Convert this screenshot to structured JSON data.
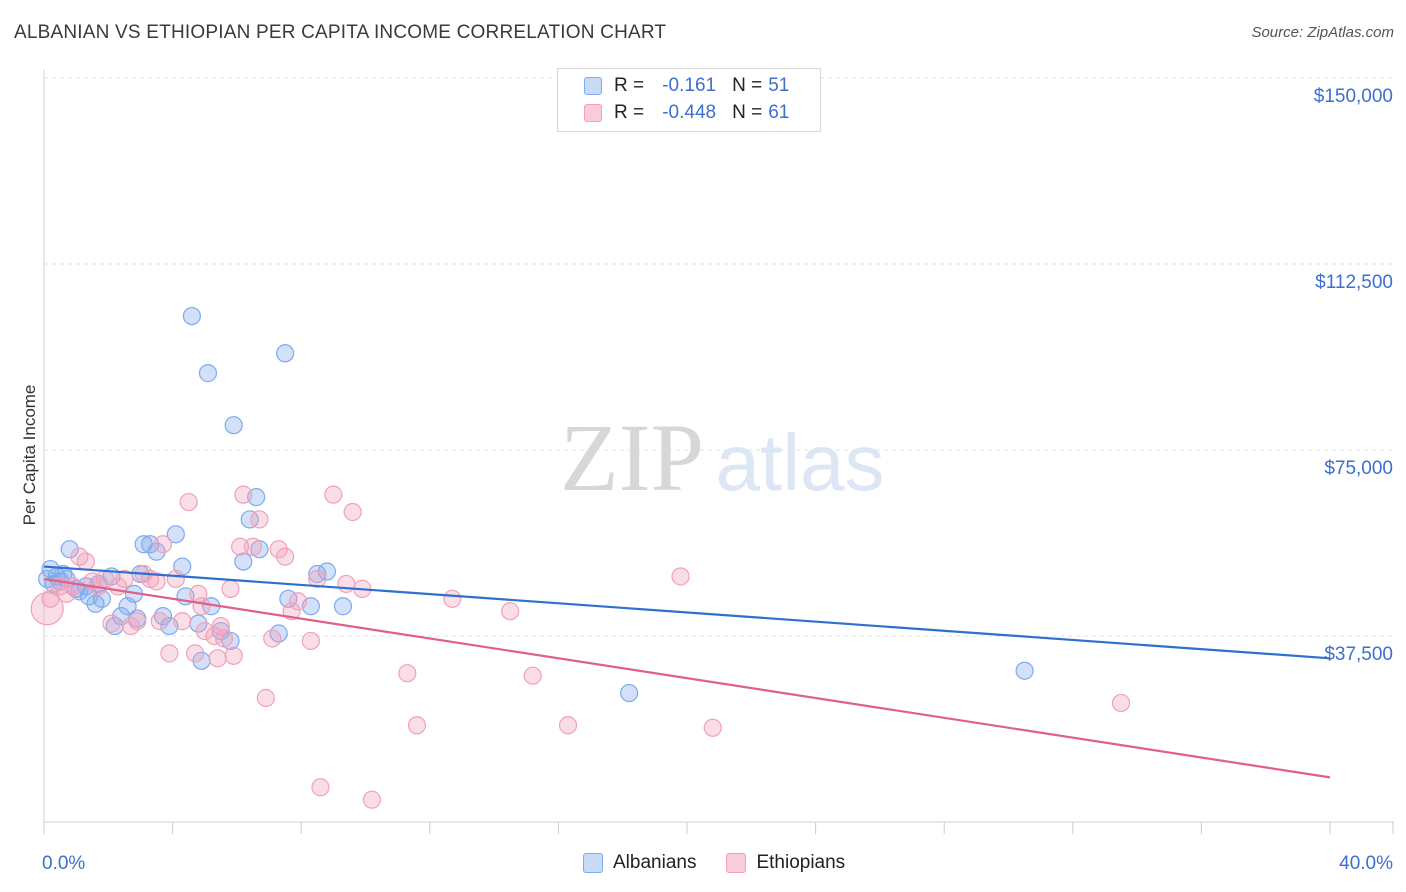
{
  "chart_data": {
    "type": "scatter",
    "title": "ALBANIAN VS ETHIOPIAN PER CAPITA INCOME CORRELATION CHART",
    "source": "Source: ZipAtlas.com",
    "xlabel": "",
    "ylabel": "Per Capita Income",
    "xlim": [
      0,
      40
    ],
    "ylim": [
      0,
      155000
    ],
    "x_tick_labels": [
      "0.0%",
      "40.0%"
    ],
    "y_ticks": [
      {
        "value": 37500,
        "label": "$37,500"
      },
      {
        "value": 75000,
        "label": "$75,000"
      },
      {
        "value": 112500,
        "label": "$112,500"
      },
      {
        "value": 150000,
        "label": "$150,000"
      }
    ],
    "watermark": "ZIPatlas",
    "series": [
      {
        "name": "Albanians",
        "color": "#7eaaee",
        "line_color": "#2f6fd0",
        "R": "-0.161",
        "N": "51",
        "trend": {
          "x0": 0,
          "y0": 51500,
          "x1": 40,
          "y1": 33000
        },
        "points": [
          [
            0.2,
            51000
          ],
          [
            0.3,
            48000
          ],
          [
            0.4,
            49500
          ],
          [
            0.5,
            48500
          ],
          [
            0.6,
            50000
          ],
          [
            0.7,
            49000
          ],
          [
            0.8,
            55000
          ],
          [
            1.0,
            47000
          ],
          [
            1.1,
            46500
          ],
          [
            1.3,
            47500
          ],
          [
            1.4,
            45500
          ],
          [
            1.6,
            44000
          ],
          [
            1.7,
            48000
          ],
          [
            1.8,
            45000
          ],
          [
            2.1,
            49500
          ],
          [
            2.2,
            39500
          ],
          [
            2.4,
            41500
          ],
          [
            2.6,
            43500
          ],
          [
            2.8,
            46000
          ],
          [
            2.9,
            41000
          ],
          [
            3.0,
            50000
          ],
          [
            3.1,
            56000
          ],
          [
            3.3,
            56000
          ],
          [
            3.5,
            54500
          ],
          [
            3.7,
            41500
          ],
          [
            3.9,
            39500
          ],
          [
            4.1,
            58000
          ],
          [
            4.3,
            51500
          ],
          [
            4.4,
            45500
          ],
          [
            4.6,
            102000
          ],
          [
            4.8,
            40000
          ],
          [
            4.9,
            32500
          ],
          [
            5.1,
            90500
          ],
          [
            5.2,
            43500
          ],
          [
            5.5,
            38500
          ],
          [
            5.8,
            36500
          ],
          [
            5.9,
            80000
          ],
          [
            6.2,
            52500
          ],
          [
            6.4,
            61000
          ],
          [
            6.6,
            65500
          ],
          [
            6.7,
            55000
          ],
          [
            7.3,
            38000
          ],
          [
            7.5,
            94500
          ],
          [
            7.6,
            45000
          ],
          [
            8.3,
            43500
          ],
          [
            8.5,
            50000
          ],
          [
            8.8,
            50500
          ],
          [
            9.3,
            43500
          ],
          [
            18.2,
            26000
          ],
          [
            30.5,
            30500
          ],
          [
            0.1,
            49000
          ]
        ]
      },
      {
        "name": "Ethiopians",
        "color": "#f2a0ba",
        "line_color": "#e0608a",
        "R": "-0.448",
        "N": "61",
        "trend": {
          "x0": 0,
          "y0": 49000,
          "x1": 40,
          "y1": 9000
        },
        "points": [
          [
            0.1,
            43000
          ],
          [
            0.2,
            45000
          ],
          [
            0.5,
            47500
          ],
          [
            0.7,
            46000
          ],
          [
            0.9,
            47500
          ],
          [
            1.1,
            53500
          ],
          [
            1.3,
            52500
          ],
          [
            1.5,
            48500
          ],
          [
            1.7,
            47500
          ],
          [
            1.9,
            49000
          ],
          [
            2.1,
            40000
          ],
          [
            2.3,
            47500
          ],
          [
            2.5,
            49000
          ],
          [
            2.7,
            39500
          ],
          [
            2.9,
            40500
          ],
          [
            3.1,
            50000
          ],
          [
            3.3,
            49000
          ],
          [
            3.5,
            48500
          ],
          [
            3.6,
            40500
          ],
          [
            3.7,
            56000
          ],
          [
            3.9,
            34000
          ],
          [
            4.1,
            49000
          ],
          [
            4.3,
            40500
          ],
          [
            4.5,
            64500
          ],
          [
            4.7,
            34000
          ],
          [
            4.8,
            46000
          ],
          [
            4.9,
            43500
          ],
          [
            5.0,
            38500
          ],
          [
            5.3,
            37500
          ],
          [
            5.4,
            33000
          ],
          [
            5.5,
            39500
          ],
          [
            5.6,
            37000
          ],
          [
            5.8,
            47000
          ],
          [
            5.9,
            33500
          ],
          [
            6.1,
            55500
          ],
          [
            6.2,
            66000
          ],
          [
            6.5,
            55500
          ],
          [
            6.7,
            61000
          ],
          [
            6.9,
            25000
          ],
          [
            7.1,
            37000
          ],
          [
            7.3,
            55000
          ],
          [
            7.5,
            53500
          ],
          [
            7.7,
            42500
          ],
          [
            7.9,
            44500
          ],
          [
            8.3,
            36500
          ],
          [
            8.5,
            49000
          ],
          [
            9.0,
            66000
          ],
          [
            9.4,
            48000
          ],
          [
            9.6,
            62500
          ],
          [
            9.9,
            47000
          ],
          [
            10.2,
            4500
          ],
          [
            8.6,
            7000
          ],
          [
            11.3,
            30000
          ],
          [
            11.6,
            19500
          ],
          [
            12.7,
            45000
          ],
          [
            14.5,
            42500
          ],
          [
            15.2,
            29500
          ],
          [
            16.3,
            19500
          ],
          [
            19.8,
            49500
          ],
          [
            20.8,
            19000
          ],
          [
            33.5,
            24000
          ]
        ]
      }
    ]
  }
}
